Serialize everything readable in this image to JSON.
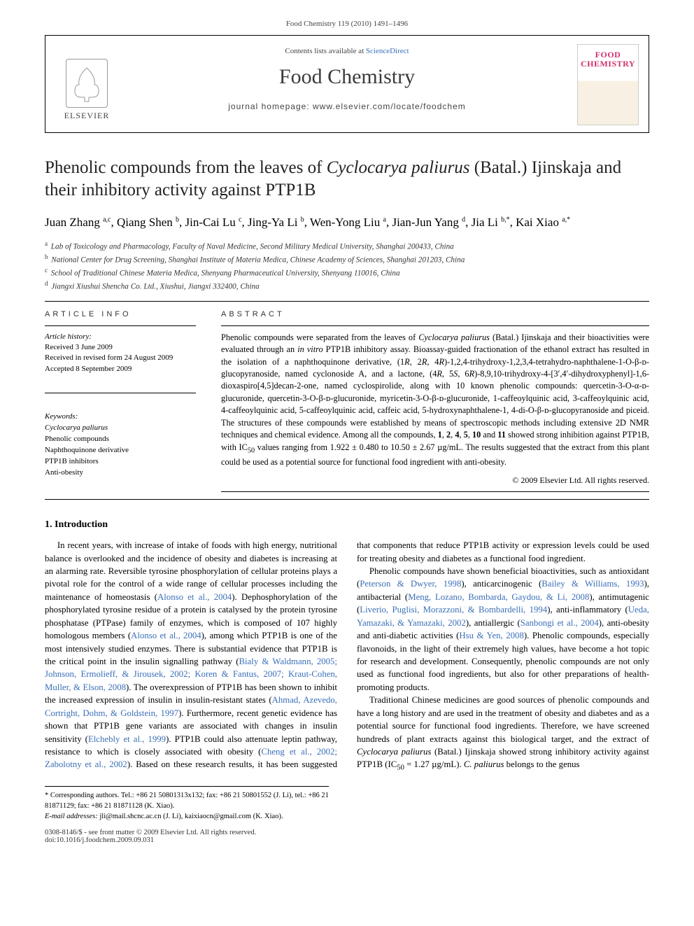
{
  "running_head": "Food Chemistry 119 (2010) 1491–1496",
  "header": {
    "contents_prefix": "Contents lists available at ",
    "contents_link": "ScienceDirect",
    "journal": "Food Chemistry",
    "homepage_prefix": "journal homepage: ",
    "homepage": "www.elsevier.com/locate/foodchem",
    "elsevier": "ELSEVIER",
    "cover_line1": "FOOD",
    "cover_line2": "CHEMISTRY"
  },
  "title_pre": "Phenolic compounds from the leaves of ",
  "title_em": "Cyclocarya paliurus",
  "title_post": " (Batal.) Ijinskaja and their inhibitory activity against PTP1B",
  "authors_html": "Juan Zhang <sup>a,c</sup>, Qiang Shen <sup>b</sup>, Jin-Cai Lu <sup>c</sup>, Jing-Ya Li <sup>b</sup>, Wen-Yong Liu <sup>a</sup>, Jian-Jun Yang <sup>d</sup>, Jia Li <sup>b,*</sup>, Kai Xiao <sup>a,*</sup>",
  "affiliations": [
    {
      "key": "a",
      "text": "Lab of Toxicology and Pharmacology, Faculty of Naval Medicine, Second Military Medical University, Shanghai 200433, China"
    },
    {
      "key": "b",
      "text": "National Center for Drug Screening, Shanghai Institute of Materia Medica, Chinese Academy of Sciences, Shanghai 201203, China"
    },
    {
      "key": "c",
      "text": "School of Traditional Chinese Materia Medica, Shenyang Pharmaceutical University, Shenyang 110016, China"
    },
    {
      "key": "d",
      "text": "Jiangxi Xiushui Shencha Co. Ltd., Xiushui, Jiangxi 332400, China"
    }
  ],
  "article_info_heading": "ARTICLE INFO",
  "abstract_heading": "ABSTRACT",
  "history": {
    "label": "Article history:",
    "received": "Received 3 June 2009",
    "revised": "Received in revised form 24 August 2009",
    "accepted": "Accepted 8 September 2009"
  },
  "keywords": {
    "label": "Keywords:",
    "items": [
      "Cyclocarya paliurus",
      "Phenolic compounds",
      "Naphthoquinone derivative",
      "PTP1B inhibitors",
      "Anti-obesity"
    ]
  },
  "abstract_html": "Phenolic compounds were separated from the leaves of <em>Cyclocarya paliurus</em> (Batal.) Ijinskaja and their bioactivities were evaluated through an <em>in vitro</em> PTP1B inhibitory assay. Bioassay-guided fractionation of the ethanol extract has resulted in the isolation of a naphthoquinone derivative, (1<em>R</em>, 2<em>R</em>, 4<em>R</em>)-1,2,4-trihydroxy-1,2,3,4-tetrahydro-naphthalene-1-O-β-ᴅ-glucopyranoside, named cyclonoside A, and a lactone, (4<em>R</em>, 5<em>S</em>, 6<em>R</em>)-8,9,10-trihydroxy-4-[3′,4′-dihydroxyphenyl]-1,6-dioxaspiro[4,5]decan-2-one, named cyclospirolide, along with 10 known phenolic compounds: quercetin-3-O-α-ᴅ-glucuronide, quercetin-3-O-β-ᴅ-glucuronide, myricetin-3-O-β-ᴅ-glucuronide, 1-caffeoylquinic acid, 3-caffeoylquinic acid, 4-caffeoylquinic acid, 5-caffeoylquinic acid, caffeic acid, 5-hydroxynaphthalene-1, 4-di-O-β-ᴅ-glucopyranoside and piceid. The structures of these compounds were established by means of spectroscopic methods including extensive 2D NMR techniques and chemical evidence. Among all the compounds, <b>1</b>, <b>2</b>, <b>4</b>, <b>5</b>, <b>10</b> and <b>11</b> showed strong inhibition against PTP1B, with IC<sub>50</sub> values ranging from 1.922 ± 0.480 to 10.50 ± 2.67 µg/mL. The results suggested that the extract from this plant could be used as a potential source for functional food ingredient with anti-obesity.",
  "copyright": "© 2009 Elsevier Ltd. All rights reserved.",
  "section1": "1. Introduction",
  "body_paragraphs": [
    "In recent years, with increase of intake of foods with high energy, nutritional balance is overlooked and the incidence of obesity and diabetes is increasing at an alarming rate. Reversible tyrosine phosphorylation of cellular proteins plays a pivotal role for the control of a wide range of cellular processes including the maintenance of homeostasis (<a class='ref' href='#'>Alonso et al., 2004</a>). Dephosphorylation of the phosphorylated tyrosine residue of a protein is catalysed by the protein tyrosine phosphatase (PTPase) family of enzymes, which is composed of 107 highly homologous members (<a class='ref' href='#'>Alonso et al., 2004</a>), among which PTP1B is one of the most intensively studied enzymes. There is substantial evidence that PTP1B is the critical point in the insulin signalling pathway (<a class='ref' href='#'>Bialy &amp; Waldmann, 2005; Johnson, Ermolieff, &amp; Jirousek, 2002; Koren &amp; Fantus, 2007; Kraut-Cohen, Muller, &amp; Elson, 2008</a>). The overexpression of PTP1B has been shown to inhibit the increased expression of insulin in insulin-resistant states (<a class='ref' href='#'>Ahmad, Azevedo, Cortright, Dohm, &amp; Goldstein, 1997</a>). Furthermore, recent genetic evidence has shown that PTP1B gene variants are associated with changes in insulin sensitivity (<a class='ref' href='#'>Elchebly et al., 1999</a>). PTP1B could also attenuate leptin pathway, resistance to which is closely associated with obesity (<a class='ref' href='#'>Cheng et al., 2002; Zabolotny et al., 2002</a>). Based on these research results, it has been suggested that components that reduce PTP1B activity or expression levels could be used for treating obesity and diabetes as a functional food ingredient.",
    "Phenolic compounds have shown beneficial bioactivities, such as antioxidant (<a class='ref' href='#'>Peterson &amp; Dwyer, 1998</a>), anticarcinogenic (<a class='ref' href='#'>Bailey &amp; Williams, 1993</a>), antibacterial (<a class='ref' href='#'>Meng, Lozano, Bombarda, Gaydou, &amp; Li, 2008</a>), antimutagenic (<a class='ref' href='#'>Liverio, Puglisi, Morazzoni, &amp; Bombardelli, 1994</a>), anti-inflammatory (<a class='ref' href='#'>Ueda, Yamazaki, &amp; Yamazaki, 2002</a>), antiallergic (<a class='ref' href='#'>Sanbongi et al., 2004</a>), anti-obesity and anti-diabetic activities (<a class='ref' href='#'>Hsu &amp; Yen, 2008</a>). Phenolic compounds, especially flavonoids, in the light of their extremely high values, have become a hot topic for research and development. Consequently, phenolic compounds are not only used as functional food ingredients, but also for other preparations of health-promoting products.",
    "Traditional Chinese medicines are good sources of phenolic compounds and have a long history and are used in the treatment of obesity and diabetes and as a potential source for functional food ingredients. Therefore, we have screened hundreds of plant extracts against this biological target, and the extract of <em>Cyclocarya paliurus</em> (Batal.) Ijinskaja showed strong inhibitory activity against PTP1B (IC<sub>50</sub> = 1.27 µg/mL). <em>C. paliurus</em> belongs to the genus"
  ],
  "footnote": {
    "corr": "* Corresponding authors. Tel.: +86 21 50801313x132; fax: +86 21 50801552 (J. Li), tel.: +86 21 81871129; fax: +86 21 81871128 (K. Xiao).",
    "email_label": "E-mail addresses:",
    "emails": "jli@mail.shcnc.ac.cn (J. Li), kaixiaocn@gmail.com (K. Xiao)."
  },
  "doi": {
    "line1": "0308-8146/$ - see front matter © 2009 Elsevier Ltd. All rights reserved.",
    "line2": "doi:10.1016/j.foodchem.2009.09.031"
  },
  "colors": {
    "ref_link": "#3a6fb7",
    "cover_pink": "#d02f6e"
  }
}
